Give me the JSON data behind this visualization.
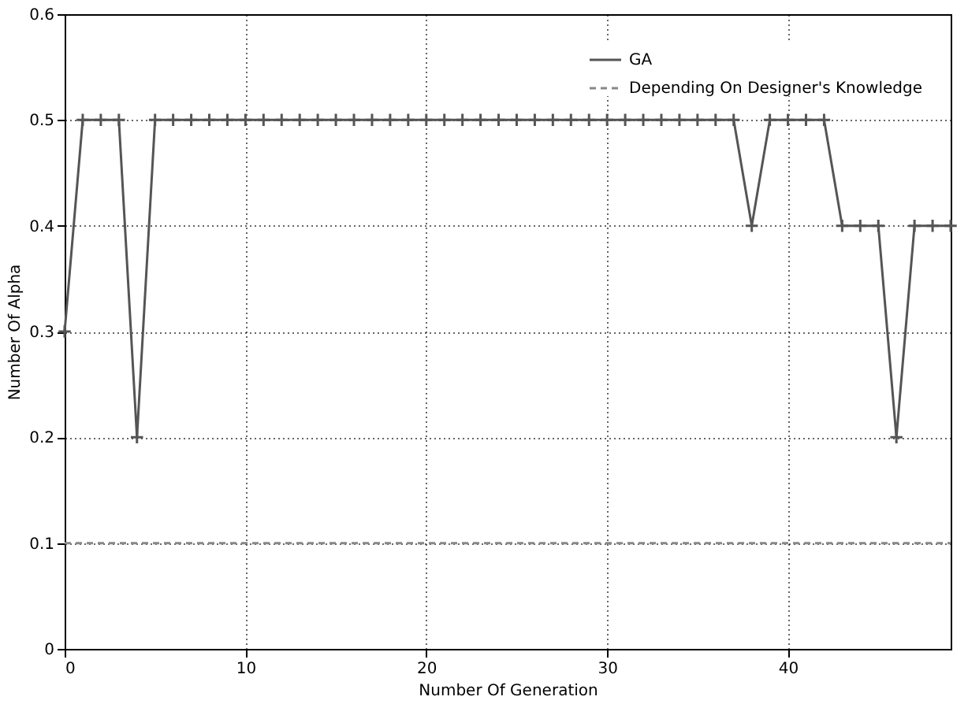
{
  "chart_data": {
    "type": "line",
    "xlabel": "Number Of Generation",
    "ylabel": "Number Of Alpha",
    "xlim": [
      0,
      49
    ],
    "ylim": [
      0,
      0.6
    ],
    "xticks": [
      0,
      10,
      20,
      30,
      40
    ],
    "yticks": [
      0,
      0.1,
      0.2,
      0.3,
      0.4,
      0.5,
      0.6
    ],
    "grid": true,
    "legend": "top right",
    "series": [
      {
        "name": "GA",
        "color": "#555555",
        "marker": "cross",
        "line_style": "solid",
        "x": [
          0,
          1,
          2,
          3,
          4,
          5,
          6,
          7,
          8,
          9,
          10,
          11,
          12,
          13,
          14,
          15,
          16,
          17,
          18,
          19,
          20,
          21,
          22,
          23,
          24,
          25,
          26,
          27,
          28,
          29,
          30,
          31,
          32,
          33,
          34,
          35,
          36,
          37,
          38,
          39,
          40,
          41,
          42,
          43,
          44,
          45,
          46,
          47,
          48,
          49
        ],
        "values": [
          0.3,
          0.5,
          0.5,
          0.5,
          0.2,
          0.5,
          0.5,
          0.5,
          0.5,
          0.5,
          0.5,
          0.5,
          0.5,
          0.5,
          0.5,
          0.5,
          0.5,
          0.5,
          0.5,
          0.5,
          0.5,
          0.5,
          0.5,
          0.5,
          0.5,
          0.5,
          0.5,
          0.5,
          0.5,
          0.5,
          0.5,
          0.5,
          0.5,
          0.5,
          0.5,
          0.5,
          0.5,
          0.5,
          0.4,
          0.5,
          0.5,
          0.5,
          0.5,
          0.4,
          0.4,
          0.4,
          0.2,
          0.4,
          0.4,
          0.4
        ]
      },
      {
        "name": "Depending On Designer's Knowledge",
        "color": "#888888",
        "marker": "none",
        "line_style": "dashed",
        "x": [
          0,
          49
        ],
        "values": [
          0.1,
          0.1
        ]
      }
    ]
  }
}
